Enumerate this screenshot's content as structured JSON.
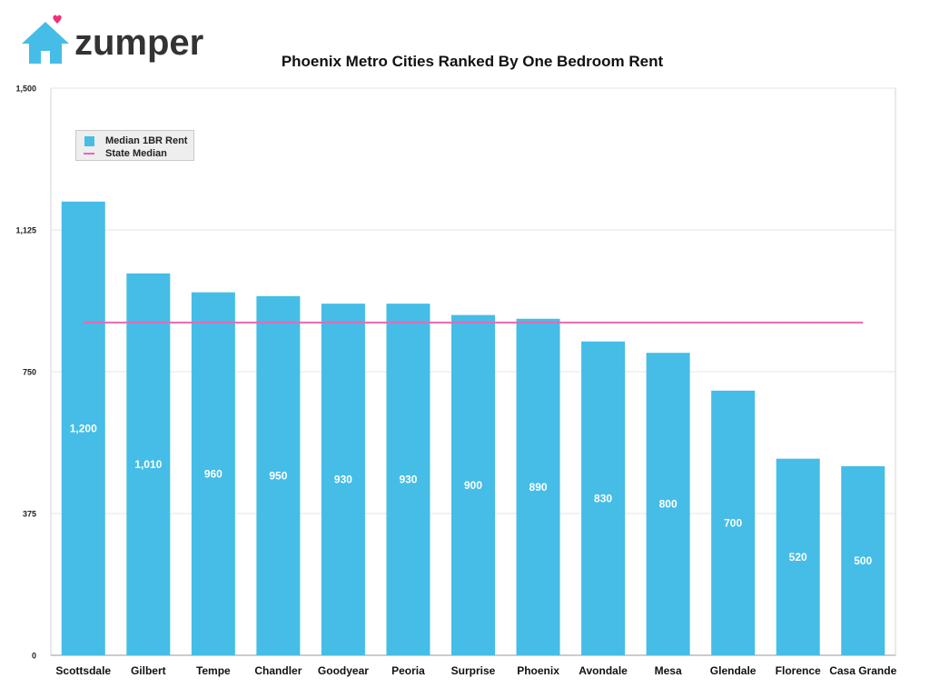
{
  "brand": {
    "name": "zumper"
  },
  "colors": {
    "bar": "#45bde6",
    "median_line": "#e868b4",
    "logo_house": "#45bde6",
    "logo_heart": "#f0307a",
    "logo_text": "#333333"
  },
  "chart_data": {
    "type": "bar",
    "title": "Phoenix Metro Cities Ranked By One Bedroom Rent",
    "xlabel": "",
    "ylabel": "",
    "categories": [
      "Scottsdale",
      "Gilbert",
      "Tempe",
      "Chandler",
      "Goodyear",
      "Peoria",
      "Surprise",
      "Phoenix",
      "Avondale",
      "Mesa",
      "Glendale",
      "Florence",
      "Casa Grande"
    ],
    "series": [
      {
        "name": "Median 1BR Rent",
        "values": [
          1200,
          1010,
          960,
          950,
          930,
          930,
          900,
          890,
          830,
          800,
          700,
          520,
          500
        ]
      },
      {
        "name": "State Median",
        "type": "line",
        "value": 880
      }
    ],
    "data_labels": [
      "1,200",
      "1,010",
      "960",
      "950",
      "930",
      "930",
      "900",
      "890",
      "830",
      "800",
      "700",
      "520",
      "500"
    ],
    "y_ticks": [
      0,
      375,
      750,
      1125,
      1500
    ],
    "y_tick_labels": [
      "0",
      "375",
      "750",
      "1,125",
      "1,500"
    ],
    "ylim": [
      0,
      1500
    ],
    "grid": true,
    "legend": "top-left"
  }
}
